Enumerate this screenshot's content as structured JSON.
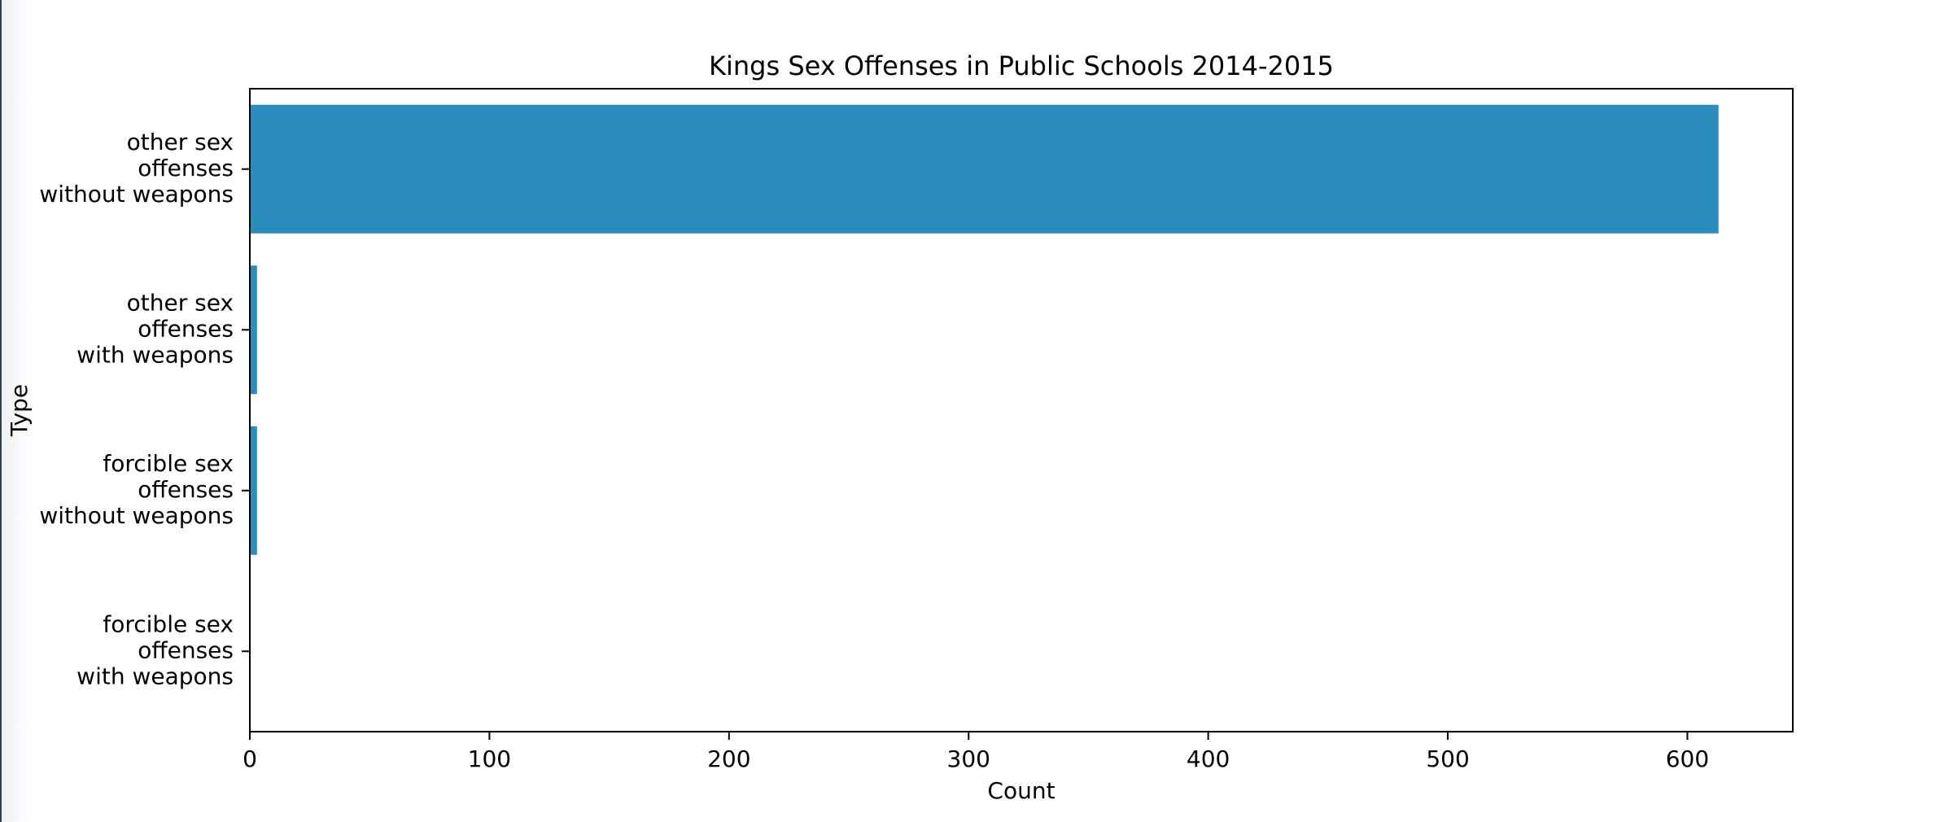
{
  "chart_data": {
    "type": "bar",
    "orientation": "horizontal",
    "title": "Kings Sex Offenses in Public Schools 2014-2015",
    "xlabel": "Count",
    "ylabel": "Type",
    "categories": [
      [
        "other sex",
        "offenses",
        "without weapons"
      ],
      [
        "other sex",
        "offenses",
        "with weapons"
      ],
      [
        "forcible sex",
        "offenses",
        "without weapons"
      ],
      [
        "forcible sex",
        "offenses",
        "with weapons"
      ]
    ],
    "values": [
      613,
      3,
      3,
      0
    ],
    "xlim": [
      0,
      644
    ],
    "xticks": [
      0,
      100,
      200,
      300,
      400,
      500,
      600
    ],
    "bar_color": "#2b8cbe",
    "grid": false,
    "legend": "none"
  }
}
